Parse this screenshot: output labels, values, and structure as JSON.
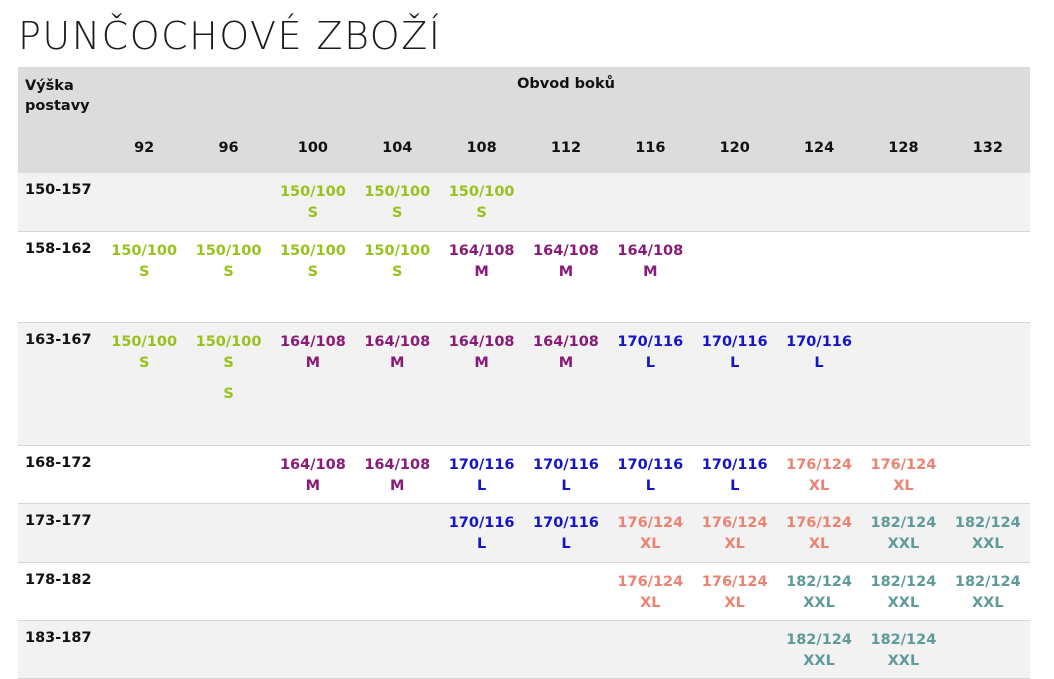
{
  "title": "PUNČOCHOVÉ ZBOŽÍ",
  "header": {
    "row_label": "Výška postavy",
    "group_label": "Obvod boků",
    "columns": [
      "92",
      "96",
      "100",
      "104",
      "108",
      "112",
      "116",
      "120",
      "124",
      "128",
      "132"
    ]
  },
  "colors": {
    "S": "#97c21c",
    "M": "#8a1a78",
    "L": "#1414c8",
    "XL": "#ec8272",
    "XXL": "#5f9a9a"
  },
  "rows": [
    {
      "label": "150-157",
      "cells": [
        null,
        null,
        {
          "code": "150/100",
          "size": "S"
        },
        {
          "code": "150/100",
          "size": "S"
        },
        {
          "code": "150/100",
          "size": "S"
        },
        null,
        null,
        null,
        null,
        null,
        null
      ]
    },
    {
      "label": "158-162",
      "cells": [
        {
          "code": "150/100",
          "size": "S"
        },
        {
          "code": "150/100",
          "size": "S"
        },
        {
          "code": "150/100",
          "size": "S"
        },
        {
          "code": "150/100",
          "size": "S"
        },
        {
          "code": "164/108",
          "size": "M"
        },
        {
          "code": "164/108",
          "size": "M"
        },
        {
          "code": "164/108",
          "size": "M"
        },
        null,
        null,
        null,
        null
      ]
    },
    {
      "label": "163-167",
      "cells": [
        {
          "code": "150/100",
          "size": "S"
        },
        {
          "code": "150/100",
          "size": "S",
          "extra": "S"
        },
        {
          "code": "164/108",
          "size": "M"
        },
        {
          "code": "164/108",
          "size": "M"
        },
        {
          "code": "164/108",
          "size": "M"
        },
        {
          "code": "164/108",
          "size": "M"
        },
        {
          "code": "170/116",
          "size": "L"
        },
        {
          "code": "170/116",
          "size": "L"
        },
        {
          "code": "170/116",
          "size": "L"
        },
        null,
        null
      ]
    },
    {
      "label": "168-172",
      "cells": [
        null,
        null,
        {
          "code": "164/108",
          "size": "M"
        },
        {
          "code": "164/108",
          "size": "M"
        },
        {
          "code": "170/116",
          "size": "L"
        },
        {
          "code": "170/116",
          "size": "L"
        },
        {
          "code": "170/116",
          "size": "L"
        },
        {
          "code": "170/116",
          "size": "L"
        },
        {
          "code": "176/124",
          "size": "XL"
        },
        {
          "code": "176/124",
          "size": "XL"
        },
        null
      ]
    },
    {
      "label": "173-177",
      "cells": [
        null,
        null,
        null,
        null,
        {
          "code": "170/116",
          "size": "L"
        },
        {
          "code": "170/116",
          "size": "L"
        },
        {
          "code": "176/124",
          "size": "XL"
        },
        {
          "code": "176/124",
          "size": "XL"
        },
        {
          "code": "176/124",
          "size": "XL"
        },
        {
          "code": "182/124",
          "size": "XXL"
        },
        {
          "code": "182/124",
          "size": "XXL"
        }
      ]
    },
    {
      "label": "178-182",
      "cells": [
        null,
        null,
        null,
        null,
        null,
        null,
        {
          "code": "176/124",
          "size": "XL"
        },
        {
          "code": "176/124",
          "size": "XL"
        },
        {
          "code": "182/124",
          "size": "XXL"
        },
        {
          "code": "182/124",
          "size": "XXL"
        },
        {
          "code": "182/124",
          "size": "XXL"
        }
      ]
    },
    {
      "label": "183-187",
      "cells": [
        null,
        null,
        null,
        null,
        null,
        null,
        null,
        null,
        {
          "code": "182/124",
          "size": "XXL"
        },
        {
          "code": "182/124",
          "size": "XXL"
        },
        null
      ]
    }
  ]
}
